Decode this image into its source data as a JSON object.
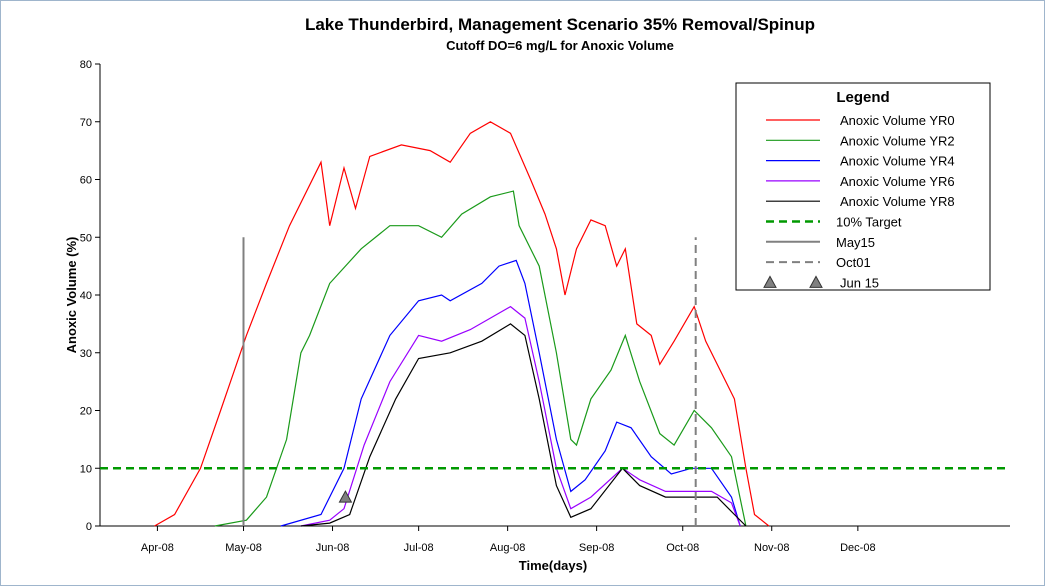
{
  "chart_data": {
    "type": "line",
    "title": "Lake Thunderbird, Management Scenario 35% Removal/Spinup",
    "subtitle": "Cutoff DO=6 mg/L for Anoxic Volume",
    "x_label": "Time(days)",
    "y_label": "Anoxic Volume (%)",
    "legend_title": "Legend",
    "legend_position": "upper right",
    "xlim": [
      72,
      389
    ],
    "ylim": [
      0,
      80
    ],
    "yticks": [
      0,
      10,
      20,
      30,
      40,
      50,
      60,
      70,
      80
    ],
    "xticks": [
      {
        "value": 92,
        "label": "Apr-08"
      },
      {
        "value": 122,
        "label": "May-08"
      },
      {
        "value": 153,
        "label": "Jun-08"
      },
      {
        "value": 183,
        "label": "Jul-08"
      },
      {
        "value": 214,
        "label": "Aug-08"
      },
      {
        "value": 245,
        "label": "Sep-08"
      },
      {
        "value": 275,
        "label": "Oct-08"
      },
      {
        "value": 306,
        "label": "Nov-08"
      },
      {
        "value": 336,
        "label": "Dec-08"
      }
    ],
    "series": [
      {
        "name": "Anoxic Volume YR0",
        "color": "#ff0000",
        "style": "solid",
        "x": [
          91,
          98,
          107,
          114,
          123,
          130,
          138,
          149,
          152,
          157,
          161,
          166,
          177,
          187,
          194,
          201,
          208,
          215,
          222,
          227,
          231,
          234,
          238,
          243,
          248,
          252,
          255,
          259,
          264,
          267,
          272,
          279,
          283,
          288,
          293,
          297,
          300,
          305
        ],
        "values": [
          0,
          2,
          10,
          20,
          33,
          42,
          52,
          63,
          52,
          62,
          55,
          64,
          66,
          65,
          63,
          68,
          70,
          68,
          60,
          54,
          48,
          40,
          48,
          53,
          52,
          45,
          48,
          35,
          33,
          28,
          32,
          38,
          32,
          27,
          22,
          10,
          2,
          0
        ]
      },
      {
        "name": "Anoxic Volume YR2",
        "color": "#1a9a1a",
        "style": "solid",
        "x": [
          112,
          123,
          130,
          137,
          142,
          145,
          152,
          163,
          173,
          183,
          191,
          198,
          208,
          216,
          218,
          225,
          231,
          236,
          238,
          243,
          250,
          255,
          260,
          267,
          272,
          279,
          285,
          292,
          297
        ],
        "values": [
          0,
          1,
          5,
          15,
          30,
          33,
          42,
          48,
          52,
          52,
          50,
          54,
          57,
          58,
          52,
          45,
          30,
          15,
          14,
          22,
          27,
          33,
          25,
          16,
          14,
          20,
          17,
          12,
          0
        ]
      },
      {
        "name": "Anoxic Volume YR4",
        "color": "#0000ff",
        "style": "solid",
        "x": [
          135,
          149,
          157,
          163,
          173,
          183,
          191,
          194,
          205,
          211,
          217,
          220,
          225,
          231,
          236,
          241,
          248,
          252,
          257,
          264,
          271,
          278,
          285,
          292,
          295
        ],
        "values": [
          0,
          2,
          10,
          22,
          33,
          39,
          40,
          39,
          42,
          45,
          46,
          42,
          30,
          15,
          6,
          8,
          13,
          18,
          17,
          12,
          9,
          10,
          10,
          5,
          0
        ]
      },
      {
        "name": "Anoxic Volume YR6",
        "color": "#9900ff",
        "style": "solid",
        "x": [
          142,
          152,
          157,
          164,
          173,
          183,
          191,
          201,
          215,
          220,
          225,
          231,
          236,
          243,
          254,
          260,
          269,
          278,
          285,
          292,
          295
        ],
        "values": [
          0,
          1,
          3,
          14,
          25,
          33,
          32,
          34,
          38,
          36,
          25,
          10,
          3,
          5,
          10,
          8,
          6,
          6,
          6,
          4,
          0
        ]
      },
      {
        "name": "Anoxic Volume YR8",
        "color": "#000000",
        "style": "solid",
        "x": [
          142,
          152,
          159,
          166,
          175,
          183,
          194,
          205,
          215,
          220,
          225,
          231,
          236,
          243,
          254,
          260,
          269,
          278,
          287,
          293,
          297
        ],
        "values": [
          0,
          0.5,
          2,
          12,
          22,
          29,
          30,
          32,
          35,
          33,
          22,
          7,
          1.5,
          3,
          10,
          7,
          5,
          5,
          5,
          2,
          0
        ]
      },
      {
        "name": "10% Target",
        "color": "#009900",
        "style": "dashed",
        "width": 2.5,
        "x": [
          72,
          389
        ],
        "values": [
          10,
          10
        ]
      },
      {
        "name": "May15",
        "color": "#808080",
        "style": "solid",
        "width": 2,
        "x": [
          122,
          122
        ],
        "values": [
          0,
          50
        ]
      },
      {
        "name": "Oct01",
        "color": "#808080",
        "style": "dashed",
        "width": 2,
        "x": [
          279.5,
          279.5
        ],
        "values": [
          0,
          50
        ]
      },
      {
        "name": "Jun 15",
        "color": "#808080",
        "style": "marker",
        "x": [
          157.5
        ],
        "values": [
          5
        ]
      }
    ]
  }
}
